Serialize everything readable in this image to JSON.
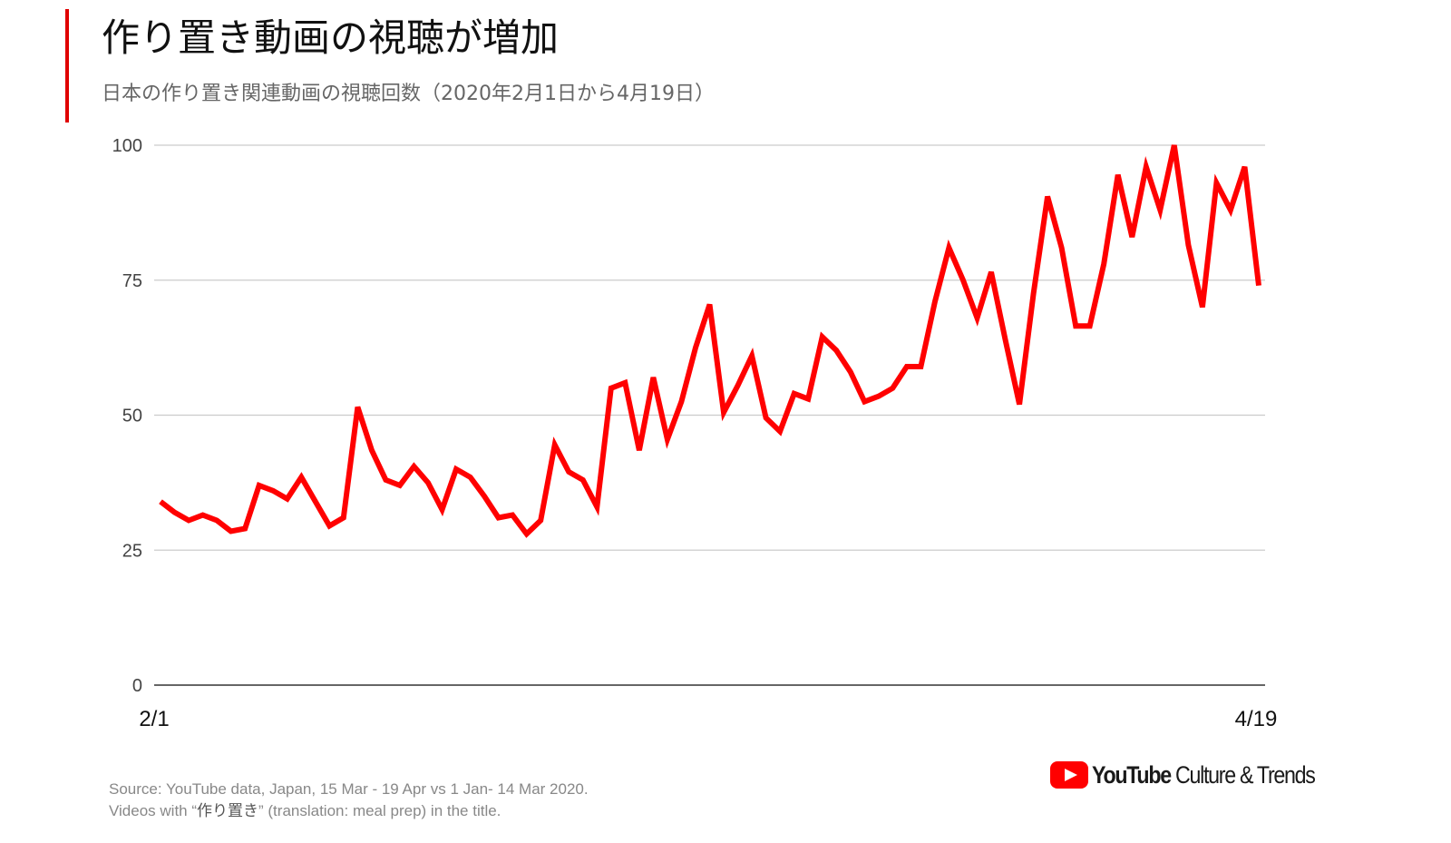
{
  "header": {
    "title": "作り置き動画の視聴が増加",
    "subtitle": "日本の作り置き関連動画の視聴回数（2020年2月1日から4月19日）"
  },
  "colors": {
    "accent": "#e00000",
    "series": "#ff0000",
    "grid": "#cccccc",
    "axis": "#333333"
  },
  "chart_data": {
    "type": "line",
    "title": "作り置き動画の視聴が増加",
    "subtitle": "日本の作り置き関連動画の視聴回数（2020年2月1日から4月19日）",
    "xlabel": "",
    "ylabel": "",
    "x_range": [
      "2/1",
      "4/19"
    ],
    "x_tick_labels": [
      "2/1",
      "4/19"
    ],
    "ylim": [
      0,
      100
    ],
    "y_ticks": [
      0,
      25,
      50,
      75,
      100
    ],
    "y_tick_labels": [
      "0",
      "25",
      "50",
      "75",
      "100"
    ],
    "grid": true,
    "series": [
      {
        "color": "#ff0000",
        "x": [
          "2/1",
          "2/2",
          "2/3",
          "2/4",
          "2/5",
          "2/6",
          "2/7",
          "2/8",
          "2/9",
          "2/10",
          "2/11",
          "2/12",
          "2/13",
          "2/14",
          "2/15",
          "2/16",
          "2/17",
          "2/18",
          "2/19",
          "2/20",
          "2/21",
          "2/22",
          "2/23",
          "2/24",
          "2/25",
          "2/26",
          "2/27",
          "2/28",
          "2/29",
          "3/1",
          "3/2",
          "3/3",
          "3/4",
          "3/5",
          "3/6",
          "3/7",
          "3/8",
          "3/9",
          "3/10",
          "3/11",
          "3/12",
          "3/13",
          "3/14",
          "3/15",
          "3/16",
          "3/17",
          "3/18",
          "3/19",
          "3/20",
          "3/21",
          "3/22",
          "3/23",
          "3/24",
          "3/25",
          "3/26",
          "3/27",
          "3/28",
          "3/29",
          "3/30",
          "3/31",
          "4/1",
          "4/2",
          "4/3",
          "4/4",
          "4/5",
          "4/6",
          "4/7",
          "4/8",
          "4/9",
          "4/10",
          "4/11",
          "4/12",
          "4/13",
          "4/14",
          "4/15",
          "4/16",
          "4/17",
          "4/18",
          "4/19"
        ],
        "values": [
          34,
          32,
          30.5,
          31.5,
          30.5,
          28.5,
          29,
          37,
          36,
          34.5,
          38.5,
          34,
          29.5,
          31,
          51.5,
          43.5,
          38,
          37,
          40.5,
          37.5,
          32.5,
          40,
          38.5,
          35,
          31,
          31.5,
          28,
          30.5,
          44.5,
          39.5,
          38,
          33,
          55,
          56,
          43.5,
          57,
          45.5,
          52.5,
          62.5,
          70.5,
          50.5,
          55.5,
          61,
          49.5,
          47,
          54,
          53,
          64.5,
          62,
          58,
          52.5,
          53.5,
          55,
          59,
          59,
          71,
          81,
          75,
          68,
          76.5,
          64,
          52,
          72.5,
          90.5,
          81,
          66.5,
          66.5,
          78,
          94.5,
          83,
          96,
          88,
          100,
          81.5,
          70,
          93,
          88,
          96,
          74
        ]
      }
    ]
  },
  "footer": {
    "source_line1": "Source: YouTube data, Japan, 15 Mar - 19 Apr vs 1 Jan- 14 Mar 2020.",
    "source_line2_prefix": "Videos with “",
    "source_line2_term": "作り置き",
    "source_line2_suffix": "” (translation: meal prep) in the title.",
    "brand": "YouTube",
    "brand_sub": " Culture & Trends",
    "brand_icon": "youtube-play-icon"
  }
}
